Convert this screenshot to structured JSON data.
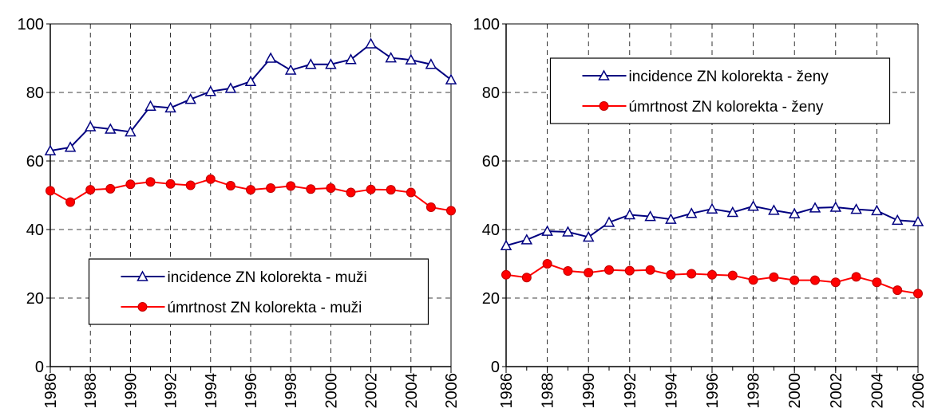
{
  "chart_data": [
    {
      "type": "line",
      "x": [
        1986,
        1987,
        1988,
        1989,
        1990,
        1991,
        1992,
        1993,
        1994,
        1995,
        1996,
        1997,
        1998,
        1999,
        2000,
        2001,
        2002,
        2003,
        2004,
        2005,
        2006
      ],
      "xlim": [
        1986,
        2006
      ],
      "xticks": [
        1986,
        1988,
        1990,
        1992,
        1994,
        1996,
        1998,
        2000,
        2002,
        2004,
        2006
      ],
      "ylim": [
        0,
        100
      ],
      "yticks": [
        0,
        20,
        40,
        60,
        80,
        100
      ],
      "grid": true,
      "legend": "lower center",
      "series": [
        {
          "name": "incidence ZN kolorekta - muži",
          "color": "#000080",
          "marker": "triangle",
          "values": [
            63,
            64,
            70,
            69.3,
            68.5,
            76,
            75.5,
            78,
            80.3,
            81.2,
            83.2,
            90,
            86.5,
            88.2,
            88.2,
            89.6,
            94.2,
            90.1,
            89.5,
            88.2,
            83.7
          ]
        },
        {
          "name": "úmrtnost ZN kolorekta - muži",
          "color": "#ff0000",
          "marker": "circle",
          "values": [
            51.3,
            48,
            51.6,
            51.9,
            53.2,
            53.9,
            53.3,
            52.9,
            54.7,
            52.8,
            51.6,
            52.1,
            52.7,
            51.8,
            52.1,
            50.8,
            51.7,
            51.6,
            50.8,
            46.5,
            45.5
          ]
        }
      ]
    },
    {
      "type": "line",
      "x": [
        1986,
        1987,
        1988,
        1989,
        1990,
        1991,
        1992,
        1993,
        1994,
        1995,
        1996,
        1997,
        1998,
        1999,
        2000,
        2001,
        2002,
        2003,
        2004,
        2005,
        2006
      ],
      "xlim": [
        1986,
        2006
      ],
      "xticks": [
        1986,
        1988,
        1990,
        1992,
        1994,
        1996,
        1998,
        2000,
        2002,
        2004,
        2006
      ],
      "ylim": [
        0,
        100
      ],
      "yticks": [
        0,
        20,
        40,
        60,
        80,
        100
      ],
      "grid": true,
      "legend": "upper center",
      "series": [
        {
          "name": "incidence ZN kolorekta - ženy",
          "color": "#000080",
          "marker": "triangle",
          "values": [
            35.3,
            37,
            39.5,
            39.3,
            37.8,
            42.1,
            44.3,
            43.8,
            43,
            44.7,
            46,
            45,
            46.8,
            45.6,
            44.6,
            46.3,
            46.5,
            45.9,
            45.5,
            42.7,
            42.3
          ]
        },
        {
          "name": "úmrtnost ZN kolorekta - ženy",
          "color": "#ff0000",
          "marker": "circle",
          "values": [
            26.8,
            26,
            30,
            27.9,
            27.4,
            28.2,
            28,
            28.2,
            26.8,
            27.1,
            26.8,
            26.6,
            25.3,
            26.1,
            25.2,
            25.2,
            24.6,
            26.2,
            24.6,
            22.3,
            21.3
          ]
        }
      ]
    }
  ]
}
